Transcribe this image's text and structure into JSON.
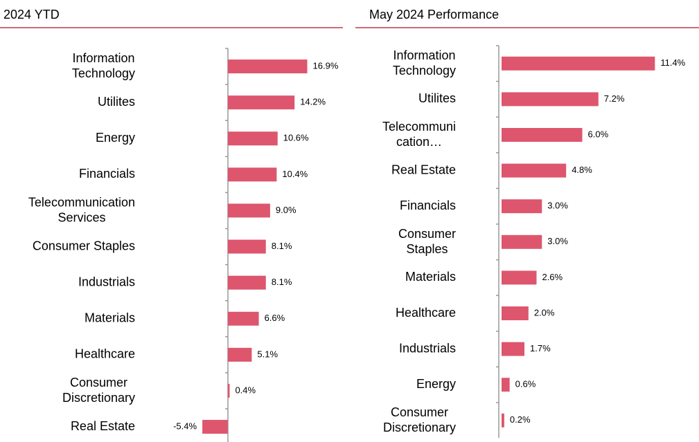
{
  "chart_data": [
    {
      "type": "bar",
      "orientation": "horizontal",
      "title": "2024 YTD",
      "color": "#dd566d",
      "xlim": [
        -6,
        18
      ],
      "categories": [
        "Information\nTechnology",
        "Utilites",
        "Energy",
        "Financials",
        "Telecommunication\nServices",
        "Consumer Staples",
        "Industrials",
        "Materials",
        "Healthcare",
        "Consumer\nDiscretionary",
        "Real Estate"
      ],
      "values": [
        16.9,
        14.2,
        10.6,
        10.4,
        9.0,
        8.1,
        8.1,
        6.6,
        5.1,
        0.4,
        -5.4
      ],
      "value_labels": [
        "16.9%",
        "14.2%",
        "10.6%",
        "10.4%",
        "9.0%",
        "8.1%",
        "8.1%",
        "6.6%",
        "5.1%",
        "0.4%",
        "-5.4%"
      ]
    },
    {
      "type": "bar",
      "orientation": "horizontal",
      "title": "May 2024 Performance",
      "color": "#dd566d",
      "xlim": [
        0,
        12
      ],
      "categories": [
        "Information\nTechnology",
        "Utilites",
        "Telecommuni\ncation…",
        "Real Estate",
        "Financials",
        "Consumer\nStaples",
        "Materials",
        "Healthcare",
        "Industrials",
        "Energy",
        "Consumer\nDiscretionary"
      ],
      "values": [
        11.4,
        7.2,
        6.0,
        4.8,
        3.0,
        3.0,
        2.6,
        2.0,
        1.7,
        0.6,
        0.2
      ],
      "value_labels": [
        "11.4%",
        "7.2%",
        "6.0%",
        "4.8%",
        "3.0%",
        "3.0%",
        "2.6%",
        "2.0%",
        "1.7%",
        "0.6%",
        "0.2%"
      ]
    }
  ]
}
